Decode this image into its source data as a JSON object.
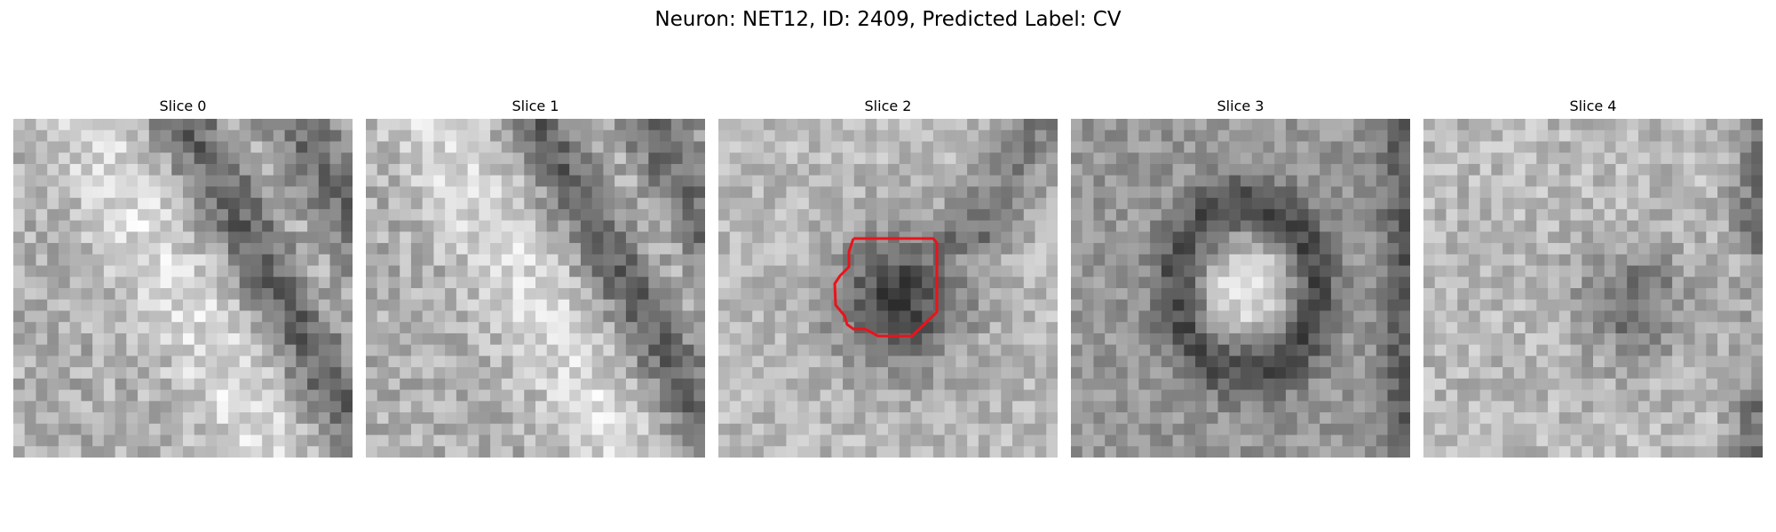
{
  "figure": {
    "title": "Neuron: NET12, ID: 2409, Predicted Label: CV"
  },
  "panels": [
    {
      "title": "Slice 0",
      "pattern": "diagonal-streaks"
    },
    {
      "title": "Slice 1",
      "pattern": "diagonal-streaks"
    },
    {
      "title": "Slice 2",
      "pattern": "dark-blob",
      "has_outline": true
    },
    {
      "title": "Slice 3",
      "pattern": "ring"
    },
    {
      "title": "Slice 4",
      "pattern": "noisy-dark-patch"
    }
  ],
  "outline_color": "#e8141c"
}
